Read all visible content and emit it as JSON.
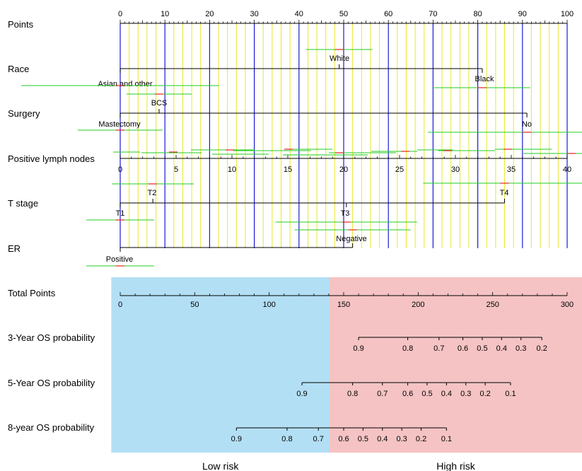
{
  "chart_data": {
    "type": "nomogram",
    "points_scale": {
      "label": "Points",
      "range": [
        0,
        100
      ],
      "ticks": [
        0,
        10,
        20,
        30,
        40,
        50,
        60,
        70,
        80,
        90,
        100
      ]
    },
    "variables": [
      {
        "key": "race",
        "label": "Race",
        "levels": [
          {
            "name": "Asian and other",
            "points": 0
          },
          {
            "name": "White",
            "points": 49
          },
          {
            "name": "Black",
            "points": 81
          }
        ]
      },
      {
        "key": "surgery",
        "label": "Surgery",
        "levels": [
          {
            "name": "Mastectomy",
            "points": 0
          },
          {
            "name": "BCS",
            "points": 8.7
          },
          {
            "name": "No",
            "points": 91
          }
        ]
      },
      {
        "key": "nodes",
        "label": "Positive  lymph nodes",
        "range": [
          0,
          40
        ],
        "points_at_max": 100,
        "ticks": [
          0,
          5,
          10,
          15,
          20,
          25,
          30,
          35,
          40
        ]
      },
      {
        "key": "tstage",
        "label": "T stage",
        "levels": [
          {
            "name": "T1",
            "points": 0
          },
          {
            "name": "T2",
            "points": 7.3
          },
          {
            "name": "T3",
            "points": 50.6
          },
          {
            "name": "T4",
            "points": 86
          }
        ]
      },
      {
        "key": "er",
        "label": "ER",
        "levels": [
          {
            "name": "Positive",
            "points": 0
          },
          {
            "name": "Negative",
            "points": 52
          }
        ]
      }
    ],
    "total_points": {
      "label": "Total Points",
      "range": [
        0,
        300
      ],
      "ticks": [
        0,
        50,
        100,
        150,
        200,
        250,
        300
      ]
    },
    "outcomes": [
      {
        "label": "3-Year OS probability",
        "ticks": [
          {
            "p": "0.9",
            "total": 160
          },
          {
            "p": "0.8",
            "total": 193
          },
          {
            "p": "0.7",
            "total": 214
          },
          {
            "p": "0.6",
            "total": 230
          },
          {
            "p": "0.5",
            "total": 243
          },
          {
            "p": "0.4",
            "total": 256
          },
          {
            "p": "0.3",
            "total": 269
          },
          {
            "p": "0.2",
            "total": 283
          }
        ]
      },
      {
        "label": "5-Year OS probability",
        "ticks": [
          {
            "p": "0.9",
            "total": 122
          },
          {
            "p": "0.8",
            "total": 156
          },
          {
            "p": "0.7",
            "total": 176
          },
          {
            "p": "0.6",
            "total": 193
          },
          {
            "p": "0.5",
            "total": 206
          },
          {
            "p": "0.4",
            "total": 219
          },
          {
            "p": "0.3",
            "total": 232
          },
          {
            "p": "0.2",
            "total": 245
          },
          {
            "p": "0.1",
            "total": 262
          }
        ]
      },
      {
        "label": "8-year OS probability",
        "ticks": [
          {
            "p": "0.9",
            "total": 78
          },
          {
            "p": "0.8",
            "total": 112
          },
          {
            "p": "0.7",
            "total": 133
          },
          {
            "p": "0.6",
            "total": 150
          },
          {
            "p": "0.5",
            "total": 163
          },
          {
            "p": "0.4",
            "total": 176
          },
          {
            "p": "0.3",
            "total": 189
          },
          {
            "p": "0.2",
            "total": 202
          },
          {
            "p": "0.1",
            "total": 219
          }
        ]
      }
    ],
    "risk_groups": [
      {
        "name": "Low risk",
        "total_range": [
          -6,
          140.5
        ],
        "color": "#b3dff5"
      },
      {
        "name": "High risk",
        "total_range": [
          140.5,
          310
        ],
        "color": "#f5c3c3"
      }
    ],
    "colors": {
      "blue_grid": "#1a1ad6",
      "yellow_grid": "#e8e82a",
      "spread": "#22cc22",
      "marker": "#e62222"
    }
  }
}
